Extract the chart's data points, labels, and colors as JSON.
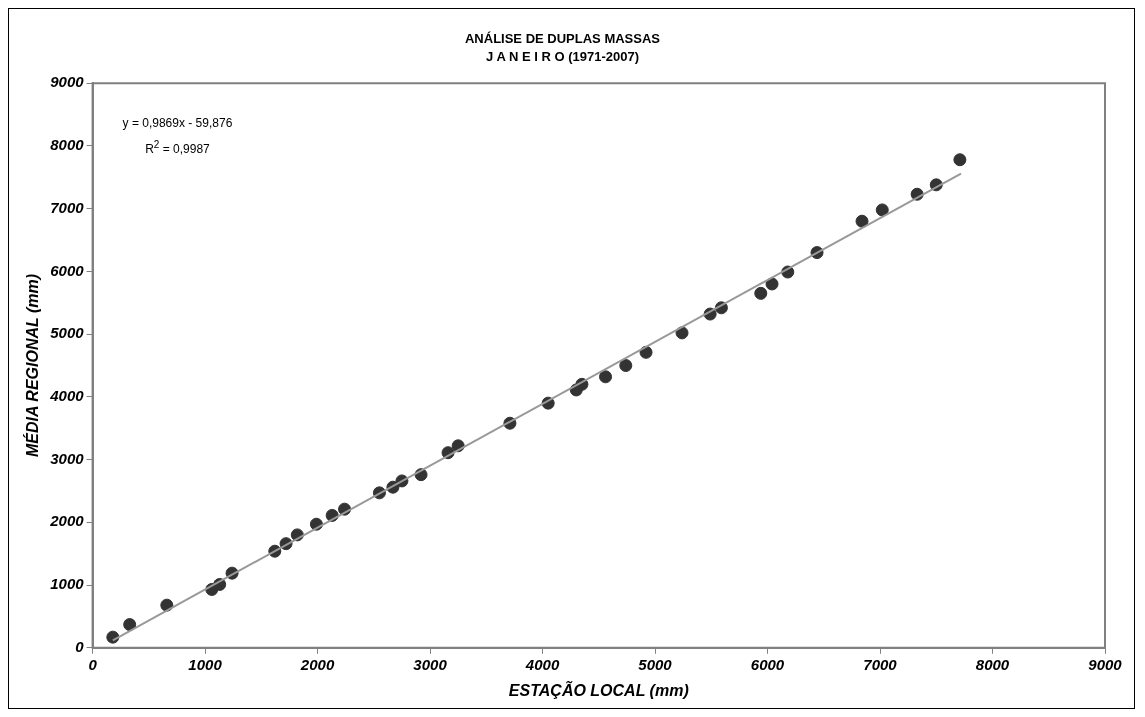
{
  "chart_data": {
    "type": "scatter",
    "title": "ANÁLISE DE DUPLAS MASSAS",
    "subtitle": "J A N E I R O (1971-2007)",
    "xlabel": "ESTAÇÃO LOCAL (mm)",
    "ylabel": "MÉDIA REGIONAL (mm)",
    "annotations": [
      "y = 0,9869x - 59,876",
      "R$^{2}$ = 0,9987"
    ],
    "xlim": [
      0,
      9000
    ],
    "xticks": [
      0,
      1000,
      2000,
      3000,
      4000,
      5000,
      6000,
      7000,
      8000,
      9000
    ],
    "ylim": [
      0,
      9000
    ],
    "yticks": [
      0,
      1000,
      2000,
      3000,
      4000,
      5000,
      6000,
      7000,
      8000,
      9000
    ],
    "grid": false,
    "legend": false,
    "marker": "circle",
    "series": [
      {
        "color": "#333333",
        "x": [
          180,
          330,
          660,
          1060,
          1130,
          1240,
          1620,
          1720,
          1820,
          1990,
          2130,
          2240,
          2550,
          2670,
          2750,
          2920,
          3160,
          3250,
          3710,
          4050,
          4300,
          4350,
          4560,
          4740,
          4920,
          5240,
          5490,
          5590,
          5940,
          6040,
          6180,
          6440,
          6840,
          7020,
          7330,
          7500,
          7710
        ],
        "values": [
          170,
          370,
          680,
          930,
          1010,
          1190,
          1540,
          1660,
          1800,
          1970,
          2110,
          2210,
          2470,
          2560,
          2660,
          2760,
          3110,
          3220,
          3580,
          3900,
          4110,
          4200,
          4320,
          4500,
          4710,
          5020,
          5320,
          5420,
          5650,
          5800,
          5990,
          6300,
          6800,
          6980,
          7230,
          7380,
          7780
        ]
      },
      {
        "type": "line",
        "color": "#999999",
        "marker": "none",
        "line_style": "solid",
        "x": [
          180,
          7720
        ],
        "values": [
          120,
          7560
        ]
      }
    ]
  }
}
